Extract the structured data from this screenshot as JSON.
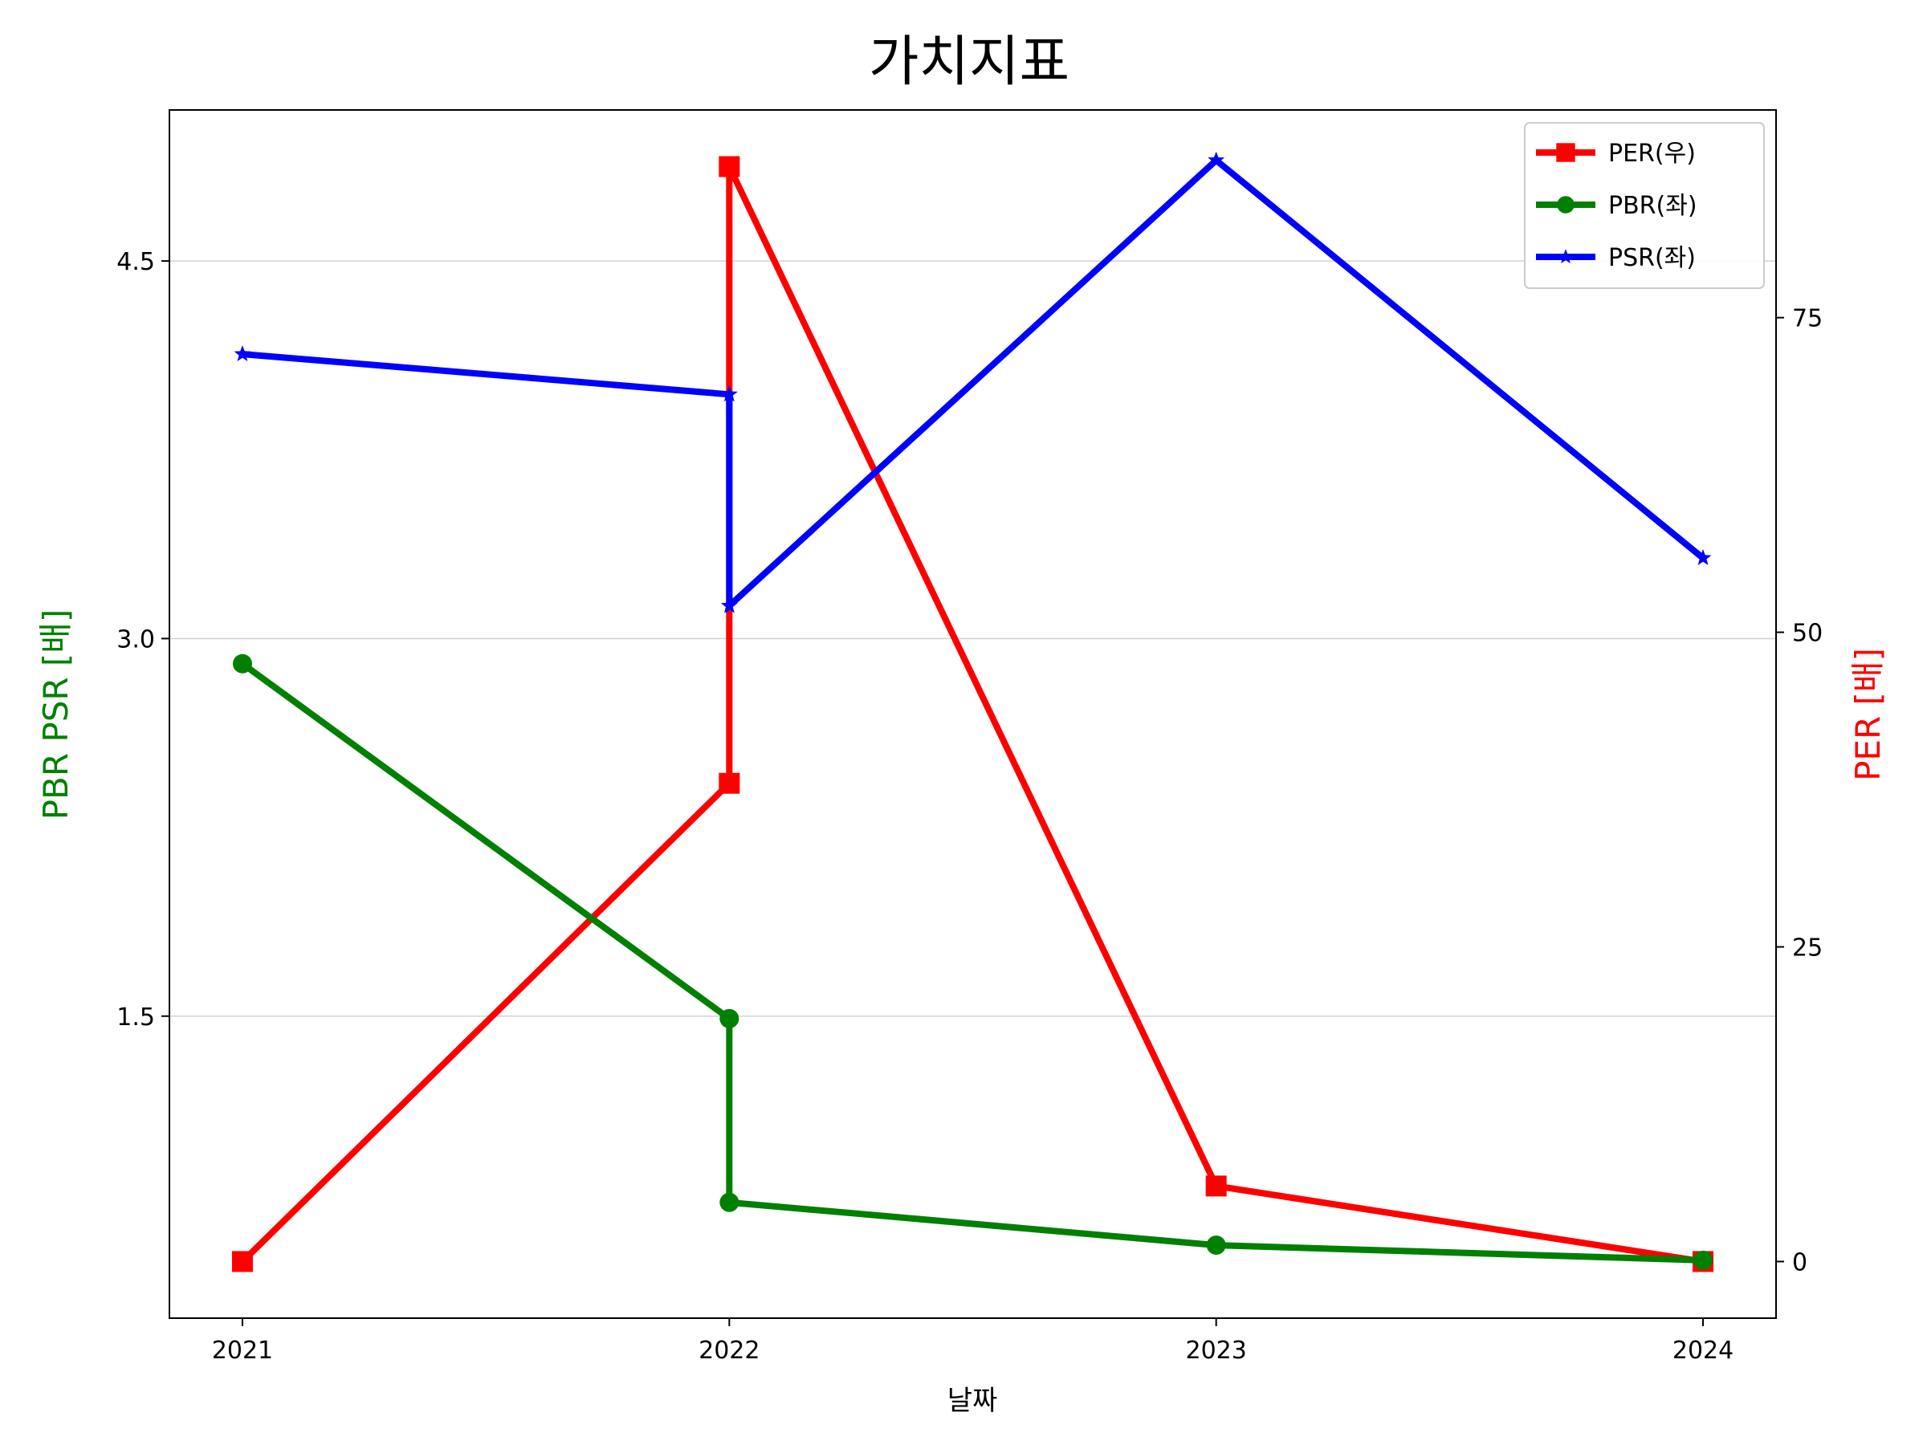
{
  "chart_data": {
    "type": "line",
    "title": "가치지표",
    "xlabel": "날짜",
    "ylabel_left": "PBR PSR [배]",
    "ylabel_right": "PER [배]",
    "ylabel_left_color": "#008000",
    "ylabel_right_color": "#ff0000",
    "x_ticks": [
      "2021",
      "2022",
      "2023",
      "2024"
    ],
    "x_lim": [
      2020.85,
      2024.15
    ],
    "y_left_lim": [
      0.3,
      5.1
    ],
    "y_left_ticks": [
      {
        "value": 1.5,
        "label": "1.5"
      },
      {
        "value": 3.0,
        "label": "3.0"
      },
      {
        "value": 4.5,
        "label": "4.5"
      }
    ],
    "y_right_lim": [
      -4.5,
      91.5
    ],
    "y_right_ticks": [
      {
        "value": 0,
        "label": "0"
      },
      {
        "value": 25,
        "label": "25"
      },
      {
        "value": 50,
        "label": "50"
      },
      {
        "value": 75,
        "label": "75"
      }
    ],
    "grid": "horizontal (left axis)",
    "legend_position": "top-right",
    "series": [
      {
        "name": "PER(우)",
        "axis": "right",
        "color": "#ff0000",
        "marker": "square",
        "points": [
          [
            2021,
            0
          ],
          [
            2022,
            38
          ],
          [
            2022,
            87
          ],
          [
            2023,
            6
          ],
          [
            2024,
            0
          ]
        ]
      },
      {
        "name": "PBR(좌)",
        "axis": "left",
        "color": "#008000",
        "marker": "circle",
        "points": [
          [
            2021,
            2.9
          ],
          [
            2022,
            1.49
          ],
          [
            2022,
            0.76
          ],
          [
            2023,
            0.59
          ],
          [
            2024,
            0.53
          ]
        ]
      },
      {
        "name": "PSR(좌)",
        "axis": "left",
        "color": "#0000ff",
        "marker": "star",
        "points": [
          [
            2021,
            4.13
          ],
          [
            2022,
            3.97
          ],
          [
            2022,
            3.13
          ],
          [
            2023,
            4.9
          ],
          [
            2024,
            3.32
          ]
        ]
      }
    ]
  }
}
